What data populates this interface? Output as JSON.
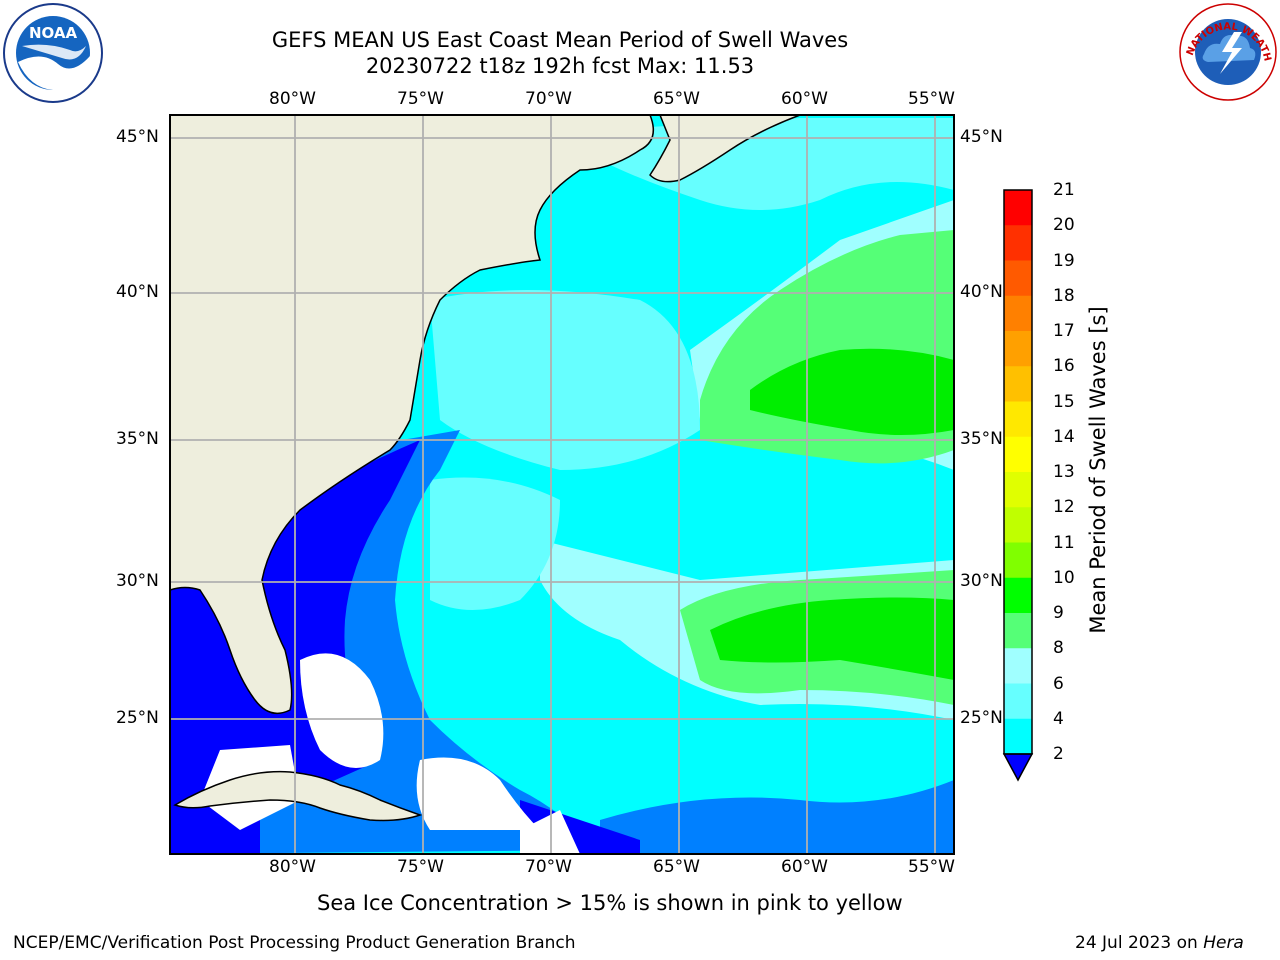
{
  "title": {
    "line1": "GEFS MEAN US East Coast Mean Period of Swell Waves",
    "line2": "20230722 t18z 192h fcst   Max: 11.53"
  },
  "map": {
    "lon_labels": [
      "80°W",
      "75°W",
      "70°W",
      "65°W",
      "60°W",
      "55°W"
    ],
    "lat_labels": [
      "45°N",
      "40°N",
      "35°N",
      "30°N",
      "25°N"
    ],
    "ocean_colors": {
      "deep_blue": "#0000ff",
      "mid_blue": "#0080ff",
      "cyan": "#00ffff",
      "light_cyan": "#66ffff",
      "pale_cyan": "#a0ffff",
      "light_green": "#55ff77",
      "green": "#00ee00",
      "land": "#eeeedd",
      "grid": "#b0b0b0"
    }
  },
  "colorbar": {
    "label": "Mean Period of Swell Waves [s]",
    "ticks": [
      "21",
      "20",
      "19",
      "18",
      "17",
      "16",
      "15",
      "14",
      "13",
      "12",
      "11",
      "10",
      "9",
      "8",
      "6",
      "4",
      "2"
    ],
    "colors": [
      "#ff0000",
      "#ff3000",
      "#ff5a00",
      "#ff8000",
      "#ffa000",
      "#ffc000",
      "#ffe800",
      "#ffff00",
      "#e0ff00",
      "#c0ff00",
      "#80ff00",
      "#00ff00",
      "#55ff77",
      "#a0ffff",
      "#66ffff",
      "#00ffff",
      "#0080ff"
    ],
    "extend_color": "#0000ff"
  },
  "logos": {
    "left": "NOAA",
    "right": "NATIONAL WEATHER SERVICE"
  },
  "footer": {
    "note": "Sea Ice Concentration > 15% is shown in pink to yellow",
    "credit": "NCEP/EMC/Verification Post Processing Product Generation Branch",
    "date": "24 Jul 2023 on",
    "machine": "Hera"
  }
}
